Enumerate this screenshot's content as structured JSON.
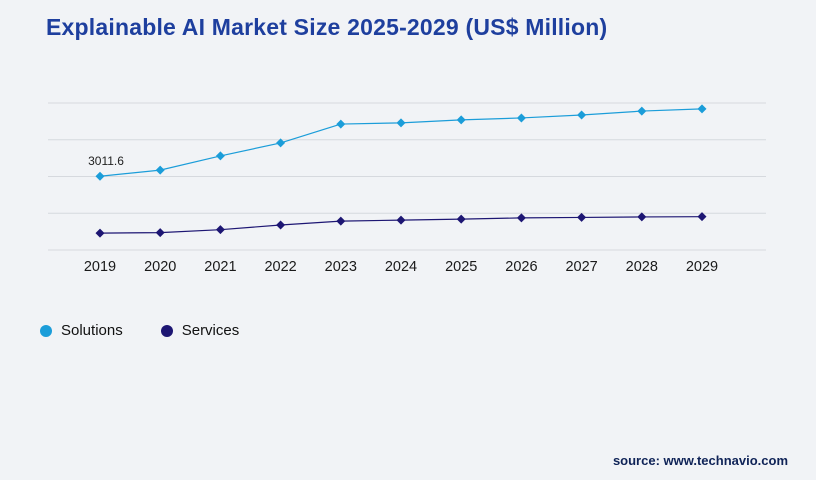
{
  "page": {
    "title": "Explainable AI Market Size 2025-2029 (US$ Million)",
    "source_text": "source: www.technavio.com"
  },
  "legend": [
    {
      "label": "Solutions",
      "color": "#1b9dd9"
    },
    {
      "label": "Services",
      "color": "#1d1673"
    }
  ],
  "chart_data": {
    "type": "line",
    "title": "Explainable AI Market Size 2025-2029 (US$ Million)",
    "categories": [
      "2019",
      "2020",
      "2021",
      "2022",
      "2023",
      "2024",
      "2025",
      "2026",
      "2027",
      "2028",
      "2029"
    ],
    "series": [
      {
        "name": "Solutions",
        "color": "#1b9dd9",
        "values": [
          3011.6,
          3260,
          3840,
          4370,
          5140,
          5190,
          5310,
          5390,
          5510,
          5670,
          5760
        ]
      },
      {
        "name": "Services",
        "color": "#1d1673",
        "values": [
          690,
          710,
          830,
          1020,
          1180,
          1220,
          1260,
          1310,
          1330,
          1350,
          1360
        ]
      }
    ],
    "xlabel": "",
    "ylabel": "",
    "ylim": [
      0,
      6000
    ],
    "gridline_count": 5,
    "grid": "horizontal",
    "legend_position": "bottom-left",
    "annotations": [
      {
        "text": "3011.6",
        "series": "Solutions",
        "index": 0
      }
    ]
  }
}
